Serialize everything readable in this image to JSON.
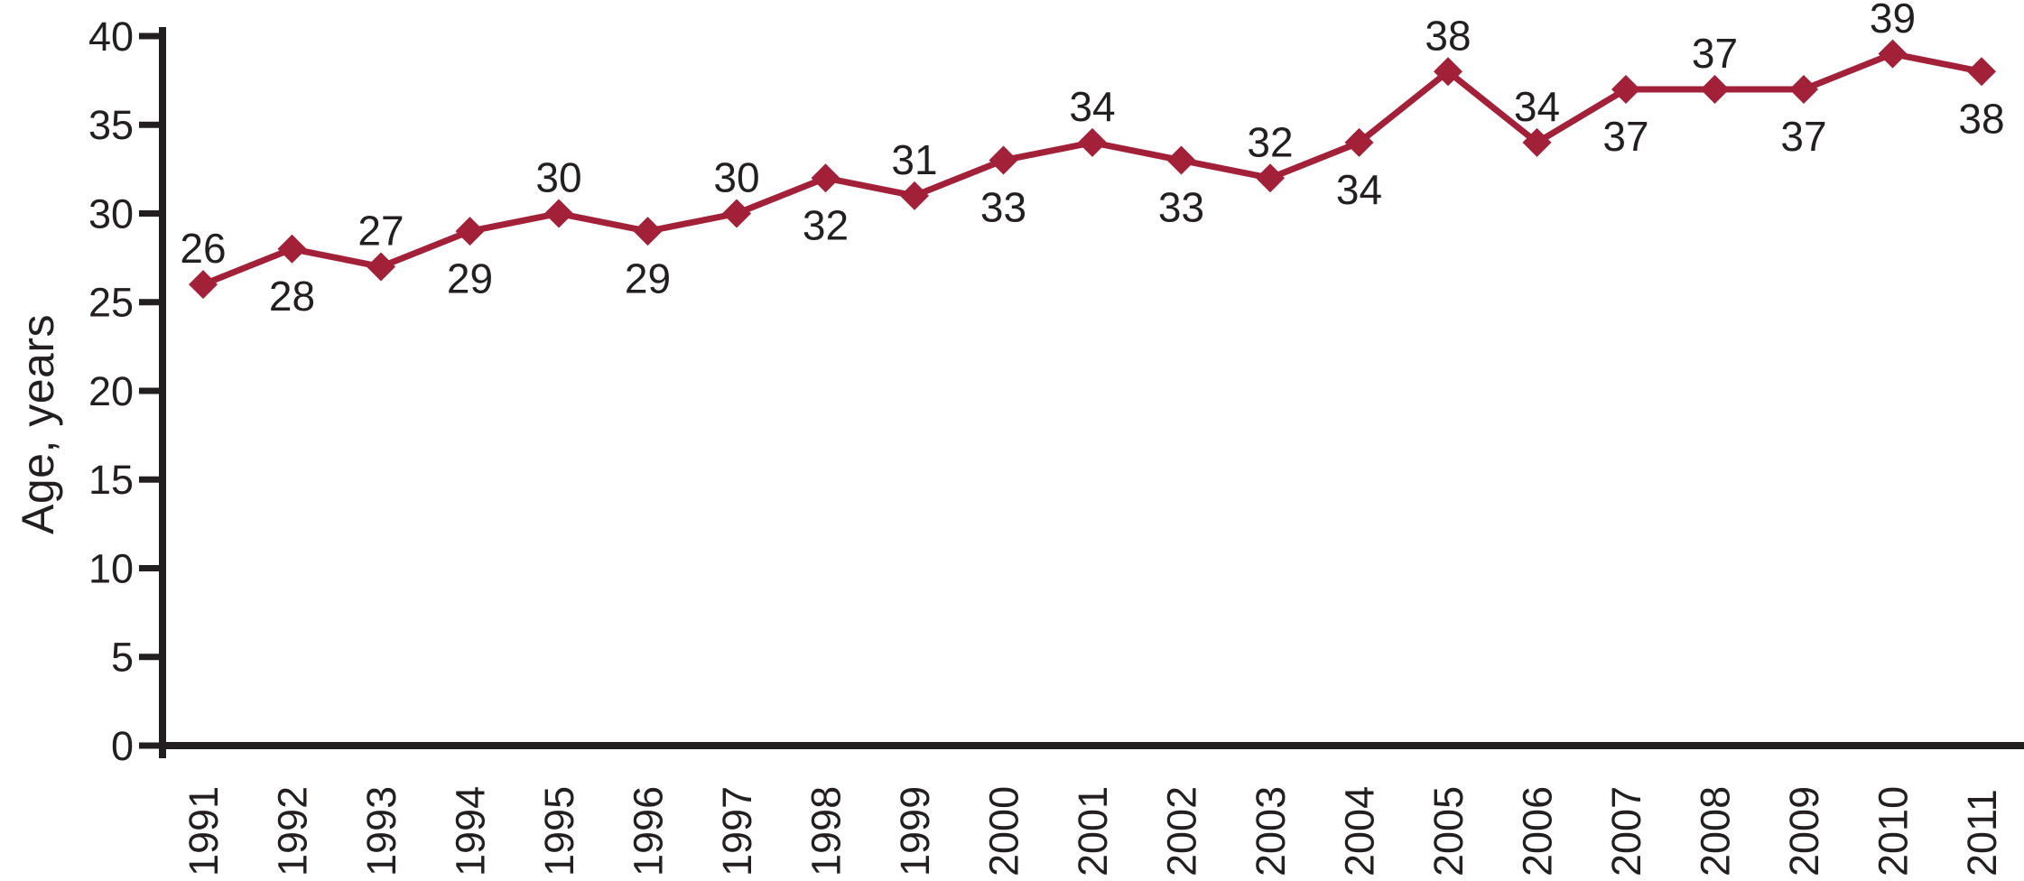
{
  "figure": {
    "background": "#FFFFFF"
  },
  "chart_data": {
    "type": "line",
    "title": "",
    "xlabel": "",
    "ylabel": "Age, years",
    "ylim": [
      0,
      40
    ],
    "yticks": [
      0,
      5,
      10,
      15,
      20,
      25,
      30,
      35,
      40
    ],
    "grid": false,
    "legend": "none",
    "marker": "diamond",
    "line_color": "#A22038",
    "axis_color": "#231F20",
    "text_color": "#231F20",
    "categories": [
      "1991",
      "1992",
      "1993",
      "1994",
      "1995",
      "1996",
      "1997",
      "1998",
      "1999",
      "2000",
      "2001",
      "2002",
      "2003",
      "2004",
      "2005",
      "2006",
      "2007",
      "2008",
      "2009",
      "2010",
      "2011"
    ],
    "values": [
      26,
      28,
      27,
      29,
      30,
      29,
      30,
      32,
      31,
      33,
      34,
      33,
      32,
      34,
      38,
      34,
      37,
      37,
      37,
      39,
      38
    ],
    "label_positions": [
      "above",
      "below",
      "above",
      "below",
      "above",
      "below",
      "above",
      "below",
      "above",
      "below",
      "above",
      "below",
      "above",
      "below",
      "above",
      "above",
      "below",
      "above",
      "below",
      "above",
      "below"
    ]
  }
}
